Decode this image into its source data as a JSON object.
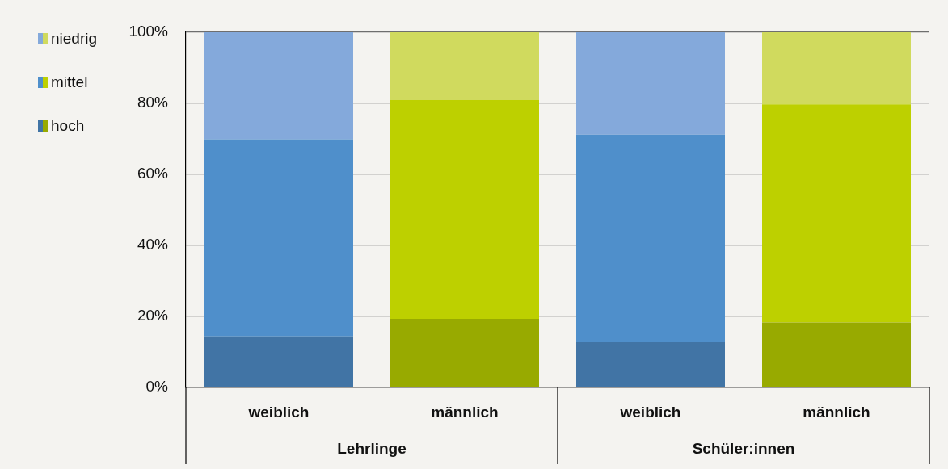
{
  "chart_data": {
    "type": "bar",
    "stacked": true,
    "categories": [
      "weiblich",
      "männlich",
      "weiblich",
      "männlich"
    ],
    "series": [
      {
        "name": "hoch",
        "colors": [
          "#4174a5",
          "#98aa00",
          "#4174a5",
          "#98aa00"
        ],
        "values": [
          14.4,
          19.3,
          12.7,
          18.3
        ]
      },
      {
        "name": "mittel",
        "colors": [
          "#4f8fcb",
          "#bdd000",
          "#4f8fcb",
          "#bdd000"
        ],
        "values": [
          55.5,
          61.6,
          58.5,
          61.4
        ]
      },
      {
        "name": "niedrig",
        "colors": [
          "#84a9db",
          "#d0da5e",
          "#84a9db",
          "#d0da5e"
        ],
        "values": [
          30.1,
          19.1,
          28.8,
          20.3
        ]
      }
    ],
    "ylim": [
      0,
      100
    ],
    "yticks": [
      {
        "value": 0,
        "label": "0%"
      },
      {
        "value": 20,
        "label": "20%"
      },
      {
        "value": 40,
        "label": "40%"
      },
      {
        "value": 60,
        "label": "60%"
      },
      {
        "value": 80,
        "label": "80%"
      },
      {
        "value": 100,
        "label": "100%"
      }
    ],
    "grid": "y",
    "legend": "top left",
    "annotations": [
      "Lehrlinge",
      "Schüler:innen"
    ]
  }
}
